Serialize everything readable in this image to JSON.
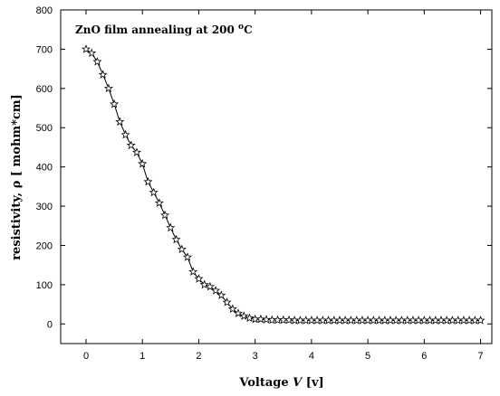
{
  "chart_data": {
    "type": "line",
    "annotation": "ZnO film annealing at 200 °C",
    "annotation_parts": {
      "text": "ZnO film annealing at 200 ",
      "superscript": "o",
      "suffix": "C"
    },
    "xlabel": "Voltage V [v]",
    "xlabel_parts": {
      "prefix": "Voltage ",
      "var": "V",
      "suffix": " [v]"
    },
    "ylabel": "resistivity, ρ [ mohm*cm]",
    "xlim": [
      -0.45,
      7.2
    ],
    "ylim": [
      -50,
      800
    ],
    "xticks": [
      0,
      1,
      2,
      3,
      4,
      5,
      6,
      7
    ],
    "yticks": [
      0,
      100,
      200,
      300,
      400,
      500,
      600,
      700,
      800
    ],
    "marker": "open-star",
    "grid": false,
    "series": [
      {
        "x": [
          0,
          0.1,
          0.2,
          0.3,
          0.4,
          0.5,
          0.6,
          0.7,
          0.8,
          0.9,
          1.0,
          1.1,
          1.2,
          1.3,
          1.4,
          1.5,
          1.6,
          1.7,
          1.8,
          1.9,
          2.0,
          2.1,
          2.2,
          2.3,
          2.4,
          2.5,
          2.6,
          2.7,
          2.8,
          2.9,
          3.0,
          3.1,
          3.2,
          3.3,
          3.4,
          3.5,
          3.6,
          3.7,
          3.8,
          3.9,
          4.0,
          4.1,
          4.2,
          4.3,
          4.4,
          4.5,
          4.6,
          4.7,
          4.8,
          4.9,
          5.0,
          5.1,
          5.2,
          5.3,
          5.4,
          5.5,
          5.6,
          5.7,
          5.8,
          5.9,
          6.0,
          6.1,
          6.2,
          6.3,
          6.4,
          6.5,
          6.6,
          6.7,
          6.8,
          6.9,
          7.0
        ],
        "y": [
          700,
          690,
          668,
          635,
          600,
          560,
          515,
          482,
          455,
          437,
          408,
          362,
          335,
          308,
          277,
          245,
          215,
          190,
          170,
          133,
          115,
          100,
          95,
          85,
          73,
          55,
          38,
          27,
          20,
          15,
          12,
          12,
          11,
          10,
          10,
          10,
          10,
          9,
          9,
          9,
          9,
          9,
          9,
          9,
          9,
          9,
          9,
          9,
          9,
          9,
          9,
          9,
          9,
          9,
          9,
          9,
          9,
          9,
          9,
          9,
          9,
          9,
          9,
          9,
          9,
          9,
          9,
          9,
          9,
          9,
          9
        ]
      }
    ]
  }
}
